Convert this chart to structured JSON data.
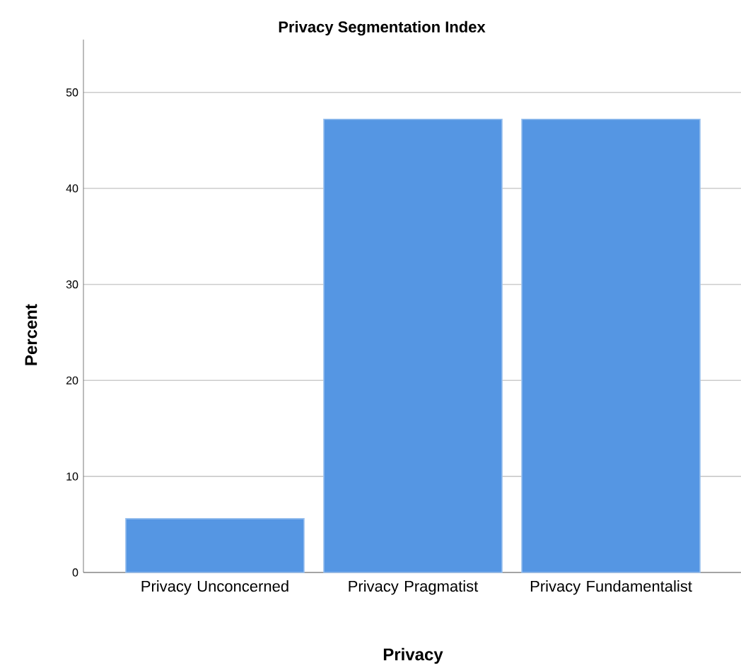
{
  "chart_data": {
    "type": "bar",
    "title": "Privacy Segmentation Index",
    "xlabel": "Privacy",
    "ylabel": "Percent",
    "categories": [
      "Privacy Unconcerned",
      "Privacy Pragmatist",
      "Privacy Fundamentalist"
    ],
    "values": [
      5.6,
      47.2,
      47.2
    ],
    "color": "#5596e3",
    "ylim": [
      0,
      55.5
    ],
    "yticks": [
      0,
      10,
      20,
      30,
      40,
      50
    ],
    "grid": "y"
  }
}
